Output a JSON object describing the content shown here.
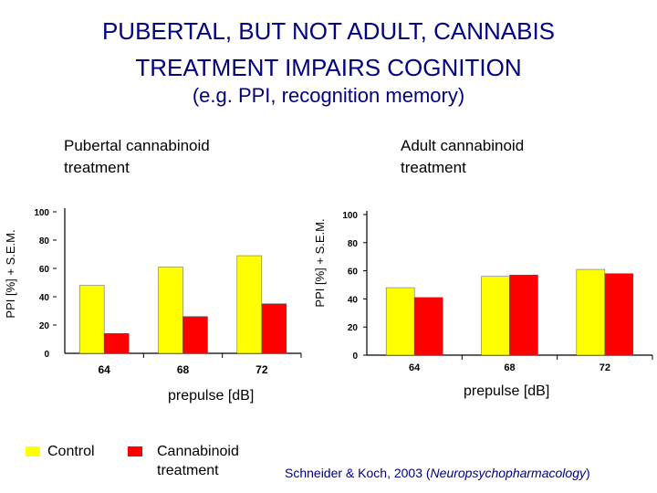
{
  "slide": {
    "title_line1": "PUBERTAL, BUT NOT ADULT, CANNABIS",
    "title_line2": "TREATMENT IMPAIRS COGNITION",
    "subtitle": "(e.g. PPI, recognition memory)",
    "citation_prefix": "Schneider & Koch, 2003 (",
    "citation_journal": "Neuropsychopharmacology",
    "citation_suffix": ")"
  },
  "legend": {
    "items": [
      {
        "label": "Control",
        "color": "#ffff00"
      },
      {
        "label_line1": "Cannabinoid",
        "label_line2": "treatment",
        "color": "#ff0000"
      }
    ]
  },
  "colors": {
    "title": "#000080",
    "control": "#ffff00",
    "cannabinoid": "#ff0000",
    "axis": "#000000"
  },
  "chart_data": [
    {
      "type": "bar",
      "title_line1": "Pubertal cannabinoid",
      "title_line2": "treatment",
      "xlabel": "prepulse [dB]",
      "ylabel": "PPI [%] + S.E.M.",
      "categories": [
        "64",
        "68",
        "72"
      ],
      "yticks": [
        "0",
        "20",
        "40",
        "60",
        "80",
        "100"
      ],
      "ylim": [
        0,
        100
      ],
      "grid": false,
      "series": [
        {
          "name": "Control",
          "color": "#ffff00",
          "values": [
            48,
            61,
            69
          ]
        },
        {
          "name": "Cannabinoid treatment",
          "color": "#ff0000",
          "values": [
            14,
            26,
            35
          ]
        }
      ]
    },
    {
      "type": "bar",
      "title_line1": "Adult cannabinoid",
      "title_line2": "treatment",
      "xlabel": "prepulse [dB]",
      "ylabel": "PPI [%] + S.E.M.",
      "categories": [
        "64",
        "68",
        "72"
      ],
      "yticks": [
        "0",
        "20",
        "40",
        "60",
        "80",
        "100"
      ],
      "ylim": [
        0,
        100
      ],
      "grid": false,
      "series": [
        {
          "name": "Control",
          "color": "#ffff00",
          "values": [
            48,
            56,
            61
          ]
        },
        {
          "name": "Cannabinoid treatment",
          "color": "#ff0000",
          "values": [
            41,
            57,
            58
          ]
        }
      ]
    }
  ]
}
